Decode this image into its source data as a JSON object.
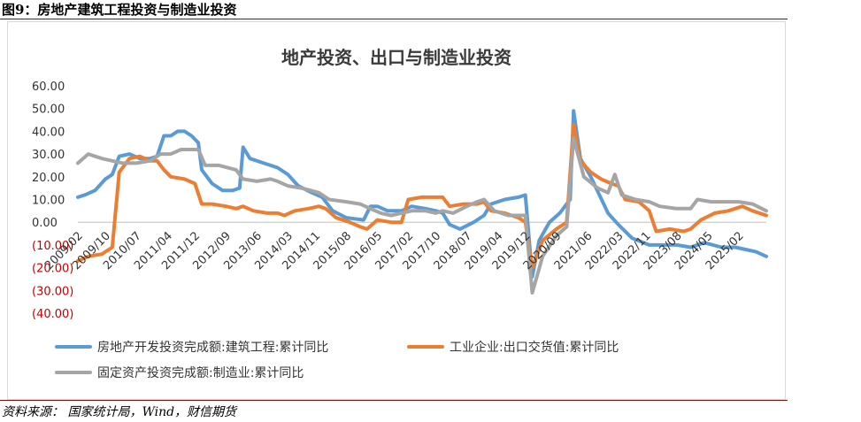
{
  "figure_title": "图9：房地产建筑工程投资与制造业投资",
  "source_text": "资料来源： 国家统计局，Wind，财信期货",
  "chart_data": {
    "type": "line",
    "title": "地产投资、出口与制造业投资",
    "ylim": [
      -40,
      60
    ],
    "y_ticks": [
      {
        "value": 60,
        "label": "60.00"
      },
      {
        "value": 50,
        "label": "50.00"
      },
      {
        "value": 40,
        "label": "40.00"
      },
      {
        "value": 30,
        "label": "30.00"
      },
      {
        "value": 20,
        "label": "20.00"
      },
      {
        "value": 10,
        "label": "10.00"
      },
      {
        "value": 0,
        "label": "0.00"
      },
      {
        "value": -10,
        "label": "(10.00)"
      },
      {
        "value": -20,
        "label": "(20.00)"
      },
      {
        "value": -30,
        "label": "(30.00)"
      },
      {
        "value": -40,
        "label": "(40.00)"
      }
    ],
    "negative_tick_color": "#c00000",
    "x_ticks": [
      {
        "month": "2009-02",
        "label": "2009/02"
      },
      {
        "month": "2009-10",
        "label": "2009/10"
      },
      {
        "month": "2010-07",
        "label": "2010/07"
      },
      {
        "month": "2011-04",
        "label": "2011/04"
      },
      {
        "month": "2011-12",
        "label": "2011/12"
      },
      {
        "month": "2012-09",
        "label": "2012/09"
      },
      {
        "month": "2013-06",
        "label": "2013/06"
      },
      {
        "month": "2014-03",
        "label": "2014/03"
      },
      {
        "month": "2014-11",
        "label": "2014/11"
      },
      {
        "month": "2015-08",
        "label": "2015/08"
      },
      {
        "month": "2016-05",
        "label": "2016/05"
      },
      {
        "month": "2017-02",
        "label": "2017/02"
      },
      {
        "month": "2017-10",
        "label": "2017/10"
      },
      {
        "month": "2018-07",
        "label": "2018/07"
      },
      {
        "month": "2019-04",
        "label": "2019/04"
      },
      {
        "month": "2019-12",
        "label": "2019/12"
      },
      {
        "month": "2020-09",
        "label": "2020/09"
      },
      {
        "month": "2021-06",
        "label": "2021/06"
      },
      {
        "month": "2022-03",
        "label": "2022/03"
      },
      {
        "month": "2022-11",
        "label": "2022/11"
      },
      {
        "month": "2023-08",
        "label": "2023/08"
      },
      {
        "month": "2024-05",
        "label": "2024/05"
      },
      {
        "month": "2025-02",
        "label": "2025/02"
      }
    ],
    "x_range": [
      "2009-02",
      "2025-10"
    ],
    "legend_position": "bottom",
    "grid": false,
    "series": [
      {
        "name": "房地产开发投资完成额:建筑工程:累计同比",
        "color": "#5b9bd5",
        "points": [
          [
            "2009-02",
            11
          ],
          [
            "2009-04",
            12
          ],
          [
            "2009-07",
            14
          ],
          [
            "2009-10",
            19
          ],
          [
            "2009-12",
            21
          ],
          [
            "2010-02",
            29
          ],
          [
            "2010-05",
            30
          ],
          [
            "2010-08",
            28
          ],
          [
            "2010-11",
            28
          ],
          [
            "2011-01",
            29
          ],
          [
            "2011-03",
            38
          ],
          [
            "2011-05",
            38
          ],
          [
            "2011-07",
            40
          ],
          [
            "2011-09",
            40
          ],
          [
            "2011-11",
            38
          ],
          [
            "2012-01",
            35
          ],
          [
            "2012-02",
            23
          ],
          [
            "2012-05",
            17
          ],
          [
            "2012-08",
            14
          ],
          [
            "2012-11",
            14
          ],
          [
            "2013-01",
            15
          ],
          [
            "2013-02",
            33
          ],
          [
            "2013-04",
            28
          ],
          [
            "2013-08",
            26
          ],
          [
            "2013-12",
            24
          ],
          [
            "2014-03",
            21
          ],
          [
            "2014-06",
            16
          ],
          [
            "2014-10",
            13
          ],
          [
            "2015-01",
            11
          ],
          [
            "2015-04",
            5
          ],
          [
            "2015-08",
            2
          ],
          [
            "2016-01",
            1
          ],
          [
            "2016-03",
            7
          ],
          [
            "2016-05",
            7
          ],
          [
            "2016-08",
            5
          ],
          [
            "2016-12",
            5
          ],
          [
            "2017-03",
            7
          ],
          [
            "2017-07",
            6
          ],
          [
            "2017-10",
            5
          ],
          [
            "2017-12",
            4
          ],
          [
            "2018-02",
            -1
          ],
          [
            "2018-05",
            -3
          ],
          [
            "2018-09",
            0
          ],
          [
            "2018-12",
            3
          ],
          [
            "2019-02",
            8
          ],
          [
            "2019-06",
            10
          ],
          [
            "2019-10",
            11
          ],
          [
            "2019-12",
            12
          ],
          [
            "2020-02",
            -24
          ],
          [
            "2020-04",
            -8
          ],
          [
            "2020-07",
            0
          ],
          [
            "2020-10",
            4
          ],
          [
            "2021-01",
            10
          ],
          [
            "2021-02",
            49
          ],
          [
            "2021-04",
            28
          ],
          [
            "2021-07",
            20
          ],
          [
            "2021-12",
            4
          ],
          [
            "2022-03",
            -1
          ],
          [
            "2022-07",
            -7
          ],
          [
            "2022-12",
            -10
          ],
          [
            "2023-04",
            -10
          ],
          [
            "2023-08",
            -10
          ],
          [
            "2023-12",
            -11
          ],
          [
            "2024-04",
            -9
          ],
          [
            "2024-09",
            -11
          ],
          [
            "2025-01",
            -11
          ],
          [
            "2025-04",
            -12
          ],
          [
            "2025-07",
            -13
          ],
          [
            "2025-10",
            -15
          ]
        ]
      },
      {
        "name": "工业企业:出口交货值:累计同比",
        "color": "#ed7d31",
        "points": [
          [
            "2009-02",
            -17
          ],
          [
            "2009-05",
            -15
          ],
          [
            "2009-09",
            -14
          ],
          [
            "2009-12",
            -11
          ],
          [
            "2010-02",
            22
          ],
          [
            "2010-05",
            28
          ],
          [
            "2010-08",
            29
          ],
          [
            "2010-11",
            27
          ],
          [
            "2011-01",
            27
          ],
          [
            "2011-03",
            23
          ],
          [
            "2011-05",
            20
          ],
          [
            "2011-09",
            19
          ],
          [
            "2011-12",
            17
          ],
          [
            "2012-02",
            8
          ],
          [
            "2012-05",
            8
          ],
          [
            "2012-09",
            7
          ],
          [
            "2012-12",
            6
          ],
          [
            "2013-02",
            7
          ],
          [
            "2013-05",
            5
          ],
          [
            "2013-09",
            4
          ],
          [
            "2013-12",
            4
          ],
          [
            "2014-02",
            3
          ],
          [
            "2014-05",
            5
          ],
          [
            "2014-09",
            6
          ],
          [
            "2014-12",
            7
          ],
          [
            "2015-02",
            6
          ],
          [
            "2015-05",
            2
          ],
          [
            "2015-09",
            0
          ],
          [
            "2015-12",
            -2
          ],
          [
            "2016-02",
            -3
          ],
          [
            "2016-05",
            1
          ],
          [
            "2016-09",
            0
          ],
          [
            "2016-12",
            0
          ],
          [
            "2017-02",
            10
          ],
          [
            "2017-06",
            11
          ],
          [
            "2017-10",
            11
          ],
          [
            "2017-12",
            11
          ],
          [
            "2018-02",
            7
          ],
          [
            "2018-06",
            8
          ],
          [
            "2018-10",
            8
          ],
          [
            "2018-12",
            9
          ],
          [
            "2019-02",
            5
          ],
          [
            "2019-06",
            4
          ],
          [
            "2019-10",
            2
          ],
          [
            "2019-12",
            0
          ],
          [
            "2020-02",
            -20
          ],
          [
            "2020-05",
            -8
          ],
          [
            "2020-09",
            -3
          ],
          [
            "2020-12",
            0
          ],
          [
            "2021-02",
            43
          ],
          [
            "2021-04",
            27
          ],
          [
            "2021-07",
            22
          ],
          [
            "2021-10",
            19
          ],
          [
            "2022-01",
            17
          ],
          [
            "2022-03",
            16
          ],
          [
            "2022-05",
            10
          ],
          [
            "2022-09",
            9
          ],
          [
            "2022-12",
            5
          ],
          [
            "2023-02",
            -4
          ],
          [
            "2023-06",
            -3
          ],
          [
            "2023-10",
            -4
          ],
          [
            "2023-12",
            -3
          ],
          [
            "2024-03",
            1
          ],
          [
            "2024-07",
            4
          ],
          [
            "2024-11",
            5
          ],
          [
            "2025-03",
            7
          ],
          [
            "2025-06",
            5
          ],
          [
            "2025-10",
            3
          ]
        ]
      },
      {
        "name": "固定资产投资完成额:制造业:累计同比",
        "color": "#a5a5a5",
        "points": [
          [
            "2009-02",
            26
          ],
          [
            "2009-05",
            30
          ],
          [
            "2009-09",
            28
          ],
          [
            "2009-12",
            27
          ],
          [
            "2010-03",
            26
          ],
          [
            "2010-07",
            26
          ],
          [
            "2010-11",
            27
          ],
          [
            "2011-02",
            30
          ],
          [
            "2011-05",
            30
          ],
          [
            "2011-08",
            32
          ],
          [
            "2011-11",
            32
          ],
          [
            "2012-01",
            32
          ],
          [
            "2012-03",
            25
          ],
          [
            "2012-07",
            25
          ],
          [
            "2012-12",
            23
          ],
          [
            "2013-02",
            19
          ],
          [
            "2013-06",
            18
          ],
          [
            "2013-10",
            19
          ],
          [
            "2013-12",
            18
          ],
          [
            "2014-03",
            16
          ],
          [
            "2014-07",
            15
          ],
          [
            "2014-12",
            13
          ],
          [
            "2015-03",
            10
          ],
          [
            "2015-08",
            9
          ],
          [
            "2015-12",
            8
          ],
          [
            "2016-03",
            6
          ],
          [
            "2016-06",
            4
          ],
          [
            "2016-09",
            3
          ],
          [
            "2016-12",
            4
          ],
          [
            "2017-03",
            5
          ],
          [
            "2017-07",
            5
          ],
          [
            "2017-10",
            4
          ],
          [
            "2017-12",
            5
          ],
          [
            "2018-03",
            4
          ],
          [
            "2018-07",
            7
          ],
          [
            "2018-10",
            9
          ],
          [
            "2018-12",
            10
          ],
          [
            "2019-03",
            5
          ],
          [
            "2019-07",
            3
          ],
          [
            "2019-10",
            3
          ],
          [
            "2019-12",
            3
          ],
          [
            "2020-02",
            -31
          ],
          [
            "2020-05",
            -15
          ],
          [
            "2020-09",
            -6
          ],
          [
            "2020-12",
            -2
          ],
          [
            "2021-02",
            37
          ],
          [
            "2021-05",
            20
          ],
          [
            "2021-09",
            15
          ],
          [
            "2021-12",
            13
          ],
          [
            "2022-02",
            21
          ],
          [
            "2022-04",
            12
          ],
          [
            "2022-08",
            10
          ],
          [
            "2022-12",
            9
          ],
          [
            "2023-03",
            7
          ],
          [
            "2023-08",
            6
          ],
          [
            "2023-12",
            6
          ],
          [
            "2024-02",
            10
          ],
          [
            "2024-06",
            9
          ],
          [
            "2024-10",
            9
          ],
          [
            "2025-02",
            9
          ],
          [
            "2025-06",
            8
          ],
          [
            "2025-10",
            5
          ]
        ]
      }
    ]
  }
}
